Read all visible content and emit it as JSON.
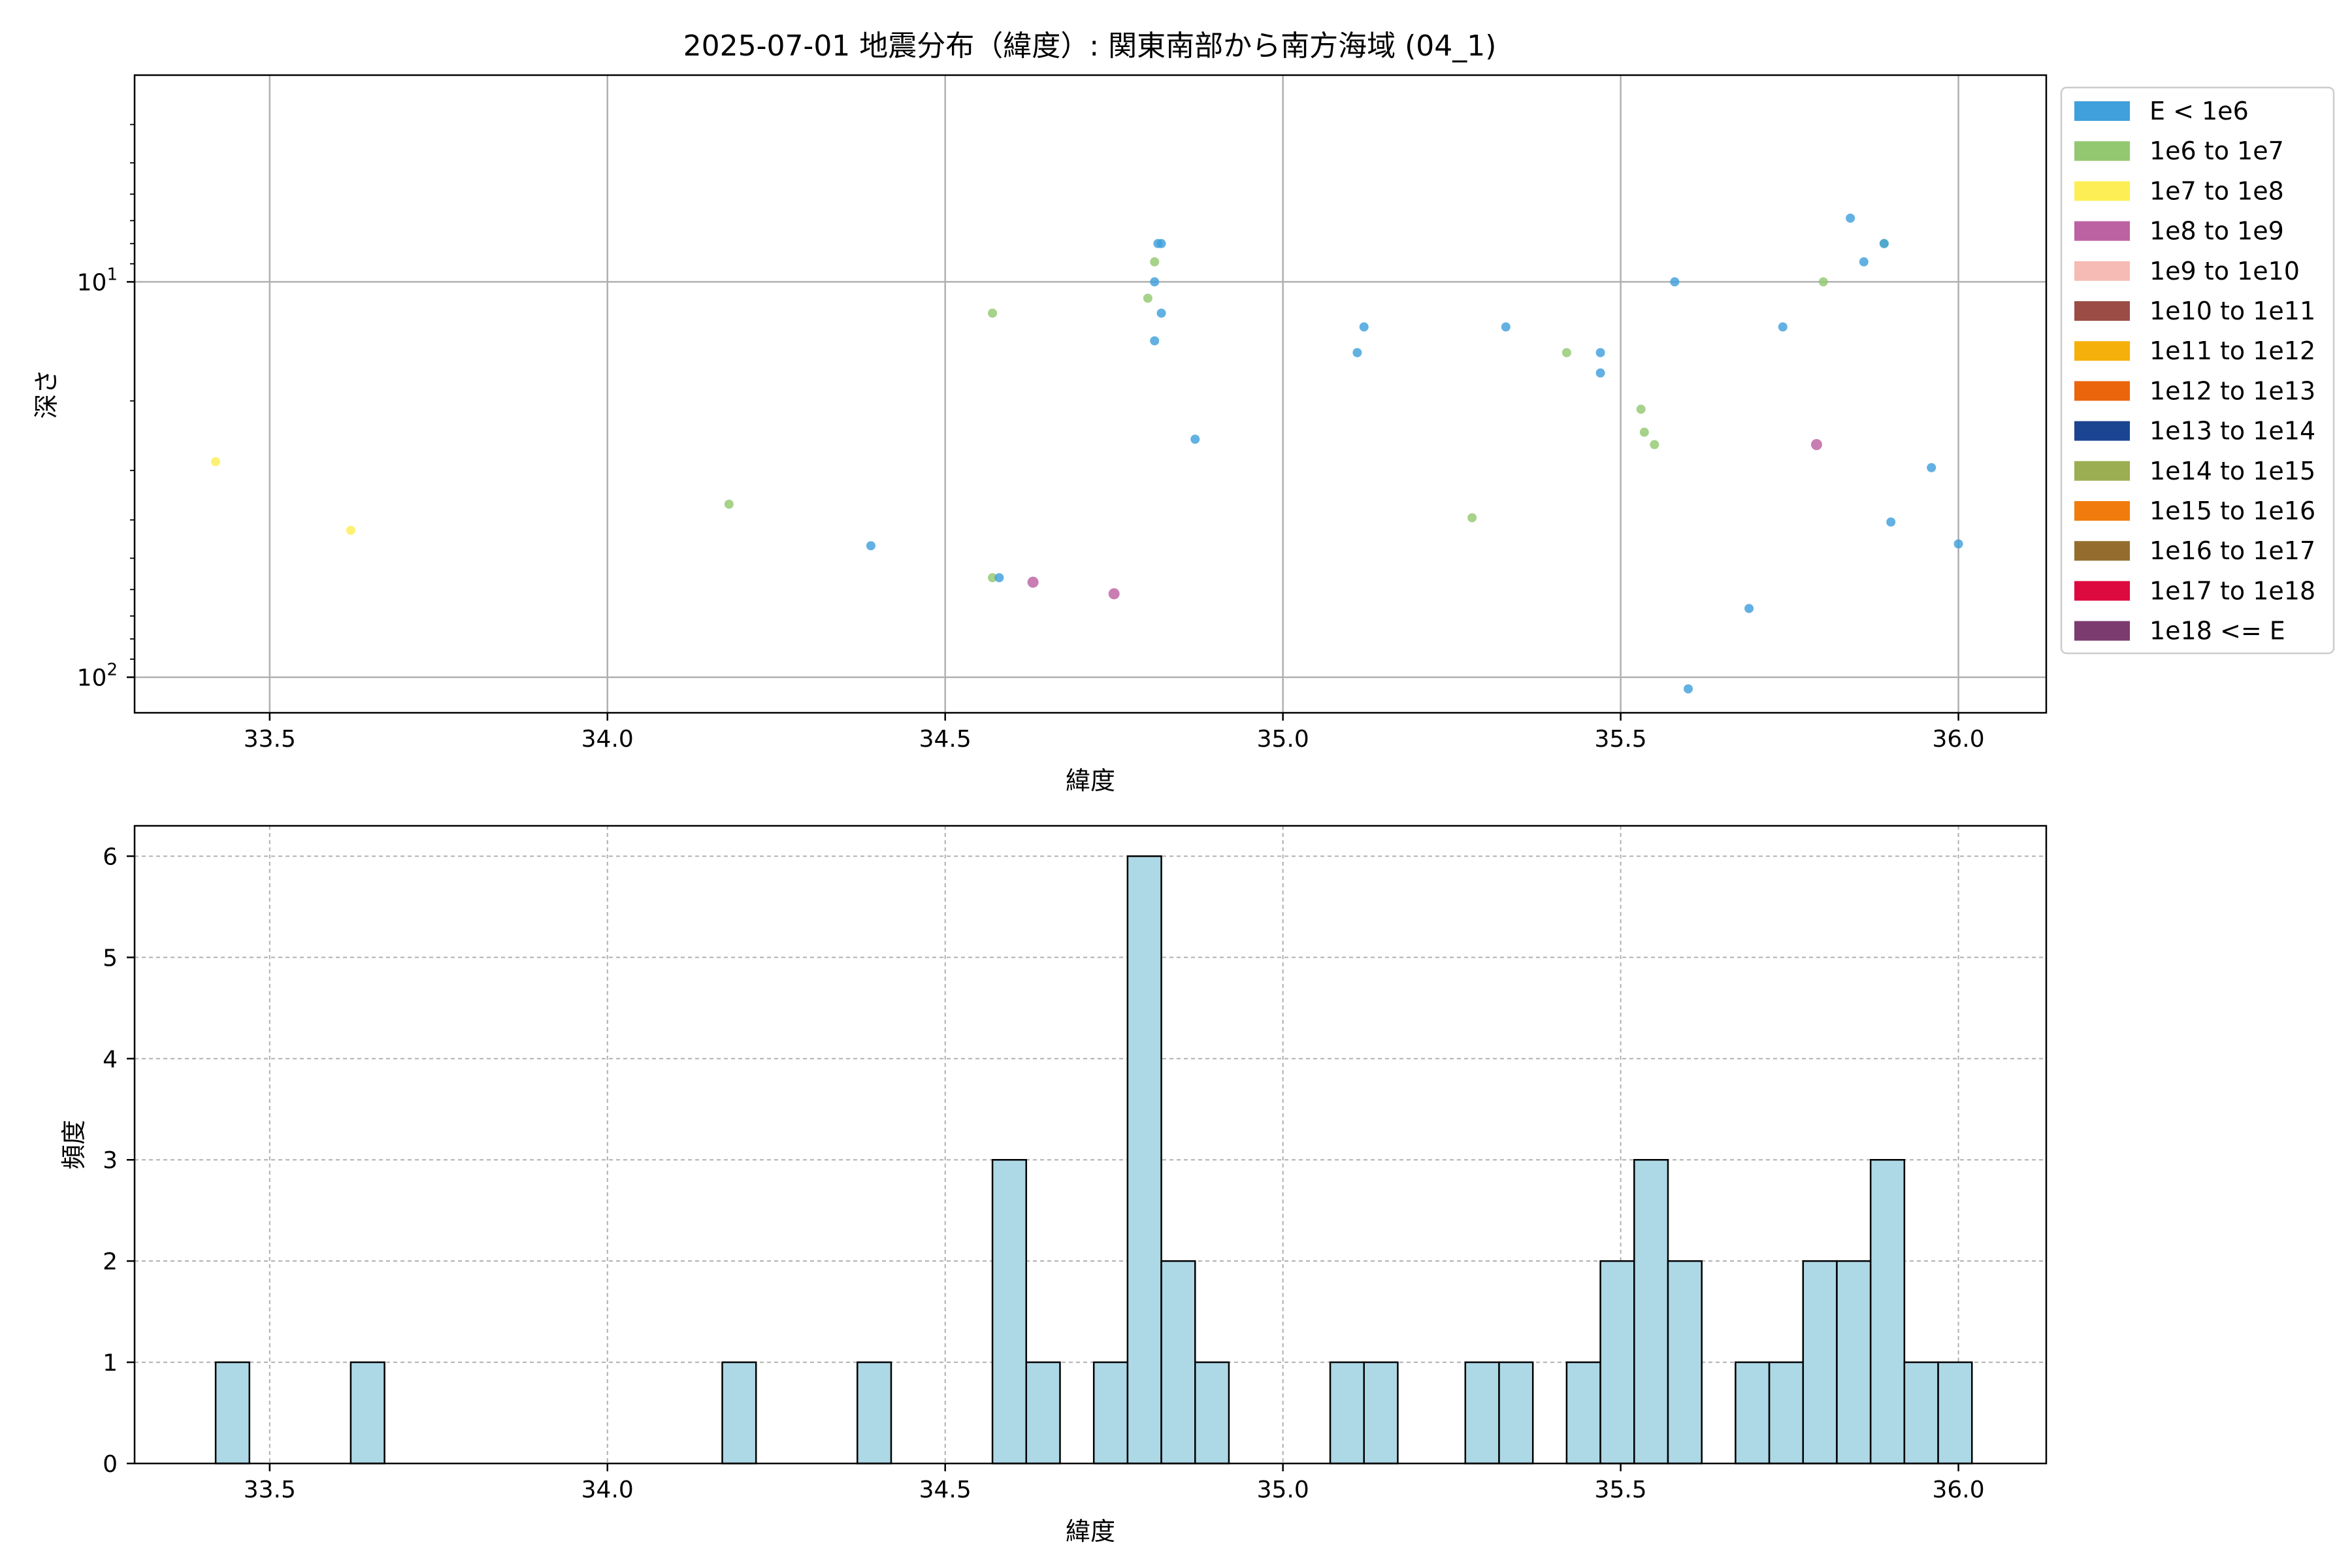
{
  "chart_data": [
    {
      "type": "scatter",
      "title": "2025-07-01 地震分布（緯度）: 関東南部から南方海域 (04_1)",
      "xlabel": "緯度",
      "ylabel": "深さ",
      "xlim": [
        33.3,
        36.13
      ],
      "ylim": [
        3.0,
        123.0
      ],
      "yscale": "log",
      "y_inverted": true,
      "grid": true,
      "legend_position": "outside-right",
      "x_ticks": [
        "33.5",
        "34.0",
        "34.5",
        "35.0",
        "35.5",
        "36.0"
      ],
      "y_ticks": [
        {
          "value": 10,
          "base": "10",
          "exp": "1"
        },
        {
          "value": 100,
          "base": "10",
          "exp": "2"
        }
      ],
      "legend": [
        {
          "label": "E < 1e6",
          "color": "#3fa0dc"
        },
        {
          "label": "1e6 to 1e7",
          "color": "#93c870"
        },
        {
          "label": "1e7 to 1e8",
          "color": "#fdee55"
        },
        {
          "label": "1e8 to 1e9",
          "color": "#bc62a2"
        },
        {
          "label": "1e9 to 1e10",
          "color": "#f5bbb4"
        },
        {
          "label": "1e10 to 1e11",
          "color": "#9b4d45"
        },
        {
          "label": "1e11 to 1e12",
          "color": "#f6b00b"
        },
        {
          "label": "1e12 to 1e13",
          "color": "#eb650c"
        },
        {
          "label": "1e13 to 1e14",
          "color": "#1b4591"
        },
        {
          "label": "1e14 to 1e15",
          "color": "#9cae52"
        },
        {
          "label": "1e15 to 1e16",
          "color": "#f17c0d"
        },
        {
          "label": "1e16 to 1e17",
          "color": "#946d2e"
        },
        {
          "label": "1e17 to 1e18",
          "color": "#dc0a3e"
        },
        {
          "label": "1e18 <= E",
          "color": "#7b3b6f"
        }
      ],
      "points": [
        {
          "x": 33.42,
          "y": 28.5,
          "class": 2
        },
        {
          "x": 33.62,
          "y": 42.5,
          "class": 2
        },
        {
          "x": 34.18,
          "y": 36.5,
          "class": 1
        },
        {
          "x": 34.39,
          "y": 46.5,
          "class": 0
        },
        {
          "x": 34.57,
          "y": 56.0,
          "class": 1
        },
        {
          "x": 34.58,
          "y": 56.0,
          "class": 0
        },
        {
          "x": 34.63,
          "y": 57.5,
          "class": 3
        },
        {
          "x": 34.57,
          "y": 12.0,
          "class": 1
        },
        {
          "x": 34.75,
          "y": 61.5,
          "class": 3
        },
        {
          "x": 34.8,
          "y": 11.0,
          "class": 1
        },
        {
          "x": 34.81,
          "y": 8.9,
          "class": 1
        },
        {
          "x": 34.81,
          "y": 10.0,
          "class": 0
        },
        {
          "x": 34.815,
          "y": 8.0,
          "class": 0
        },
        {
          "x": 34.82,
          "y": 12.0,
          "class": 0
        },
        {
          "x": 34.81,
          "y": 14.1,
          "class": 0
        },
        {
          "x": 34.82,
          "y": 8.0,
          "class": 0
        },
        {
          "x": 34.87,
          "y": 25.0,
          "class": 0
        },
        {
          "x": 35.11,
          "y": 15.1,
          "class": 0
        },
        {
          "x": 35.12,
          "y": 13.0,
          "class": 0
        },
        {
          "x": 35.28,
          "y": 39.5,
          "class": 1
        },
        {
          "x": 35.33,
          "y": 13.0,
          "class": 0
        },
        {
          "x": 35.42,
          "y": 15.1,
          "class": 1
        },
        {
          "x": 35.47,
          "y": 15.1,
          "class": 0
        },
        {
          "x": 35.47,
          "y": 17.0,
          "class": 0
        },
        {
          "x": 35.53,
          "y": 21.0,
          "class": 1
        },
        {
          "x": 35.535,
          "y": 24.0,
          "class": 1
        },
        {
          "x": 35.55,
          "y": 25.8,
          "class": 1
        },
        {
          "x": 35.58,
          "y": 10.0,
          "class": 0
        },
        {
          "x": 35.6,
          "y": 107.0,
          "class": 0
        },
        {
          "x": 35.69,
          "y": 67.0,
          "class": 0
        },
        {
          "x": 35.74,
          "y": 13.0,
          "class": 0
        },
        {
          "x": 35.79,
          "y": 25.8,
          "class": 3
        },
        {
          "x": 35.8,
          "y": 10.0,
          "class": 1
        },
        {
          "x": 35.84,
          "y": 6.9,
          "class": 0
        },
        {
          "x": 35.86,
          "y": 8.9,
          "class": 0
        },
        {
          "x": 35.89,
          "y": 8.0,
          "class": 1
        },
        {
          "x": 35.89,
          "y": 8.0,
          "class": 0
        },
        {
          "x": 35.9,
          "y": 40.5,
          "class": 0
        },
        {
          "x": 35.96,
          "y": 29.5,
          "class": 0
        },
        {
          "x": 36.0,
          "y": 46.0,
          "class": 0
        }
      ]
    },
    {
      "type": "bar",
      "title": "",
      "xlabel": "緯度",
      "ylabel": "頻度",
      "xlim": [
        33.3,
        36.13
      ],
      "ylim": [
        0,
        6.3
      ],
      "grid": true,
      "grid_style": "dashed",
      "bar_color": "#add8e6",
      "bar_edge_color": "#000000",
      "bin_width": 0.05,
      "x_ticks": [
        "33.5",
        "34.0",
        "34.5",
        "35.0",
        "35.5",
        "36.0"
      ],
      "y_ticks": [
        "0",
        "1",
        "2",
        "3",
        "4",
        "5",
        "6"
      ],
      "bins": [
        {
          "start": 33.42,
          "count": 1
        },
        {
          "start": 33.62,
          "count": 1
        },
        {
          "start": 34.17,
          "count": 1
        },
        {
          "start": 34.37,
          "count": 1
        },
        {
          "start": 34.57,
          "count": 3
        },
        {
          "start": 34.62,
          "count": 1
        },
        {
          "start": 34.72,
          "count": 1
        },
        {
          "start": 34.77,
          "count": 6
        },
        {
          "start": 34.82,
          "count": 2
        },
        {
          "start": 34.87,
          "count": 1
        },
        {
          "start": 35.07,
          "count": 1
        },
        {
          "start": 35.12,
          "count": 1
        },
        {
          "start": 35.27,
          "count": 1
        },
        {
          "start": 35.32,
          "count": 1
        },
        {
          "start": 35.42,
          "count": 1
        },
        {
          "start": 35.47,
          "count": 2
        },
        {
          "start": 35.52,
          "count": 3
        },
        {
          "start": 35.57,
          "count": 2
        },
        {
          "start": 35.67,
          "count": 1
        },
        {
          "start": 35.72,
          "count": 1
        },
        {
          "start": 35.77,
          "count": 2
        },
        {
          "start": 35.82,
          "count": 2
        },
        {
          "start": 35.87,
          "count": 3
        },
        {
          "start": 35.92,
          "count": 1
        },
        {
          "start": 35.97,
          "count": 1
        }
      ]
    }
  ]
}
